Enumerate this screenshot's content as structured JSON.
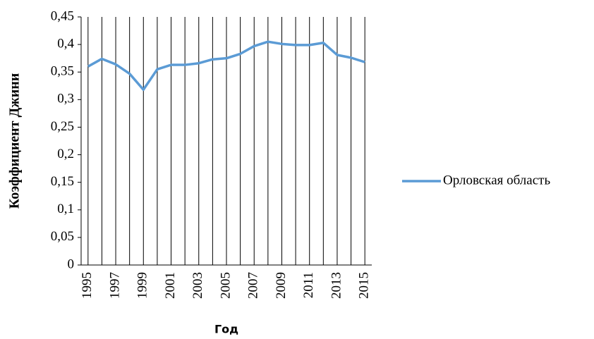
{
  "chart_data": {
    "type": "line",
    "y_label": "Коэффициент Джини",
    "x_label": "Год",
    "categories": [
      "1995",
      null,
      "1997",
      null,
      "1999",
      null,
      "2001",
      null,
      "2003",
      null,
      "2005",
      null,
      "2007",
      null,
      "2009",
      null,
      "2011",
      null,
      "2013",
      null,
      "2015"
    ],
    "series": [
      {
        "name": "Орловская область",
        "color": "#5b9bd5",
        "values": [
          0.36,
          0.374,
          0.364,
          0.347,
          0.318,
          0.355,
          0.363,
          0.363,
          0.366,
          0.373,
          0.375,
          0.383,
          0.397,
          0.405,
          0.401,
          0.399,
          0.399,
          0.403,
          0.381,
          0.376,
          0.368
        ]
      }
    ],
    "ylim": [
      0,
      0.45
    ],
    "yticks": [
      0,
      {
        "value": 0.05,
        "label": "0,05"
      },
      {
        "value": 0.1,
        "label": "0,1"
      },
      {
        "value": 0.15,
        "label": "0,15"
      },
      {
        "value": 0.2,
        "label": "0,2"
      },
      {
        "value": 0.25,
        "label": "0,25"
      },
      {
        "value": 0.3,
        "label": "0,3"
      },
      {
        "value": 0.35,
        "label": "0,35"
      },
      {
        "value": 0.4,
        "label": "0,4"
      },
      {
        "value": 0.45,
        "label": "0,45"
      }
    ],
    "legend": "right",
    "vertical_grid": true
  }
}
